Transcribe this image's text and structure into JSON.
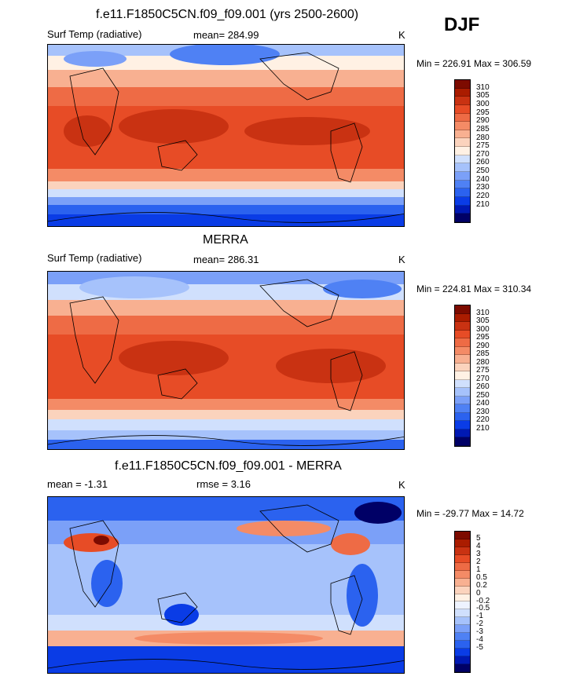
{
  "season": "DJF",
  "colors": {
    "abs": [
      "#000066",
      "#0019b3",
      "#0a3ce6",
      "#2b62ef",
      "#4f81f4",
      "#7ba0f8",
      "#a6c2fb",
      "#d0e0fd",
      "#fff1e4",
      "#fbd3bd",
      "#f8b091",
      "#f48b66",
      "#ee6b45",
      "#e74c26",
      "#c93212",
      "#aa1c00",
      "#7d0b00"
    ],
    "diff": [
      "#000066",
      "#0019b3",
      "#0a3ce6",
      "#2b62ef",
      "#4f81f4",
      "#7ba0f8",
      "#a6c2fb",
      "#d0e0fd",
      "#eef3ff",
      "#fff1e4",
      "#fbd3bd",
      "#f8b091",
      "#f48b66",
      "#ee6b45",
      "#e74c26",
      "#c93212",
      "#aa1c00",
      "#7d0b00"
    ]
  },
  "panels": [
    {
      "title": "f.e11.F1850C5CN.f09_f09.001 (yrs 2500-2600)",
      "variable": "Surf Temp (radiative)",
      "stat": "mean= 284.99",
      "units": "K",
      "minmax": "Min = 226.91 Max = 306.59",
      "chart_data": {
        "type": "heatmap",
        "field": "model surface temperature",
        "units": "K",
        "mean": 284.99,
        "min": 226.91,
        "max": 306.59,
        "levels": [
          210,
          220,
          230,
          240,
          250,
          260,
          270,
          275,
          280,
          285,
          290,
          295,
          300,
          305,
          310
        ],
        "colorbar_labels": [
          "310",
          "305",
          "300",
          "295",
          "290",
          "285",
          "280",
          "275",
          "270",
          "260",
          "250",
          "240",
          "230",
          "220",
          "210"
        ]
      }
    },
    {
      "title": "MERRA",
      "variable": "Surf Temp (radiative)",
      "stat": "mean= 286.31",
      "units": "K",
      "minmax": "Min = 224.81 Max = 310.34",
      "chart_data": {
        "type": "heatmap",
        "field": "MERRA surface temperature",
        "units": "K",
        "mean": 286.31,
        "min": 224.81,
        "max": 310.34,
        "levels": [
          210,
          220,
          230,
          240,
          250,
          260,
          270,
          275,
          280,
          285,
          290,
          295,
          300,
          305,
          310
        ],
        "colorbar_labels": [
          "310",
          "305",
          "300",
          "295",
          "290",
          "285",
          "280",
          "275",
          "270",
          "260",
          "250",
          "240",
          "230",
          "220",
          "210"
        ]
      }
    },
    {
      "title": "f.e11.F1850C5CN.f09_f09.001 - MERRA",
      "variable": "mean =  -1.31",
      "stat": "rmse =   3.16",
      "units": "K",
      "minmax": "Min = -29.77 Max =  14.72",
      "chart_data": {
        "type": "heatmap",
        "field": "model minus MERRA",
        "units": "K",
        "mean": -1.31,
        "rmse": 3.16,
        "min": -29.77,
        "max": 14.72,
        "levels": [
          -5,
          -4,
          -3,
          -2,
          -1,
          -0.5,
          -0.2,
          0,
          0.2,
          0.5,
          1,
          2,
          3,
          4,
          5
        ],
        "colorbar_labels": [
          "5",
          "4",
          "3",
          "2",
          "1",
          "0.5",
          "0.2",
          "0",
          "-0.2",
          "-0.5",
          "-1",
          "-2",
          "-3",
          "-4",
          "-5"
        ]
      }
    }
  ]
}
